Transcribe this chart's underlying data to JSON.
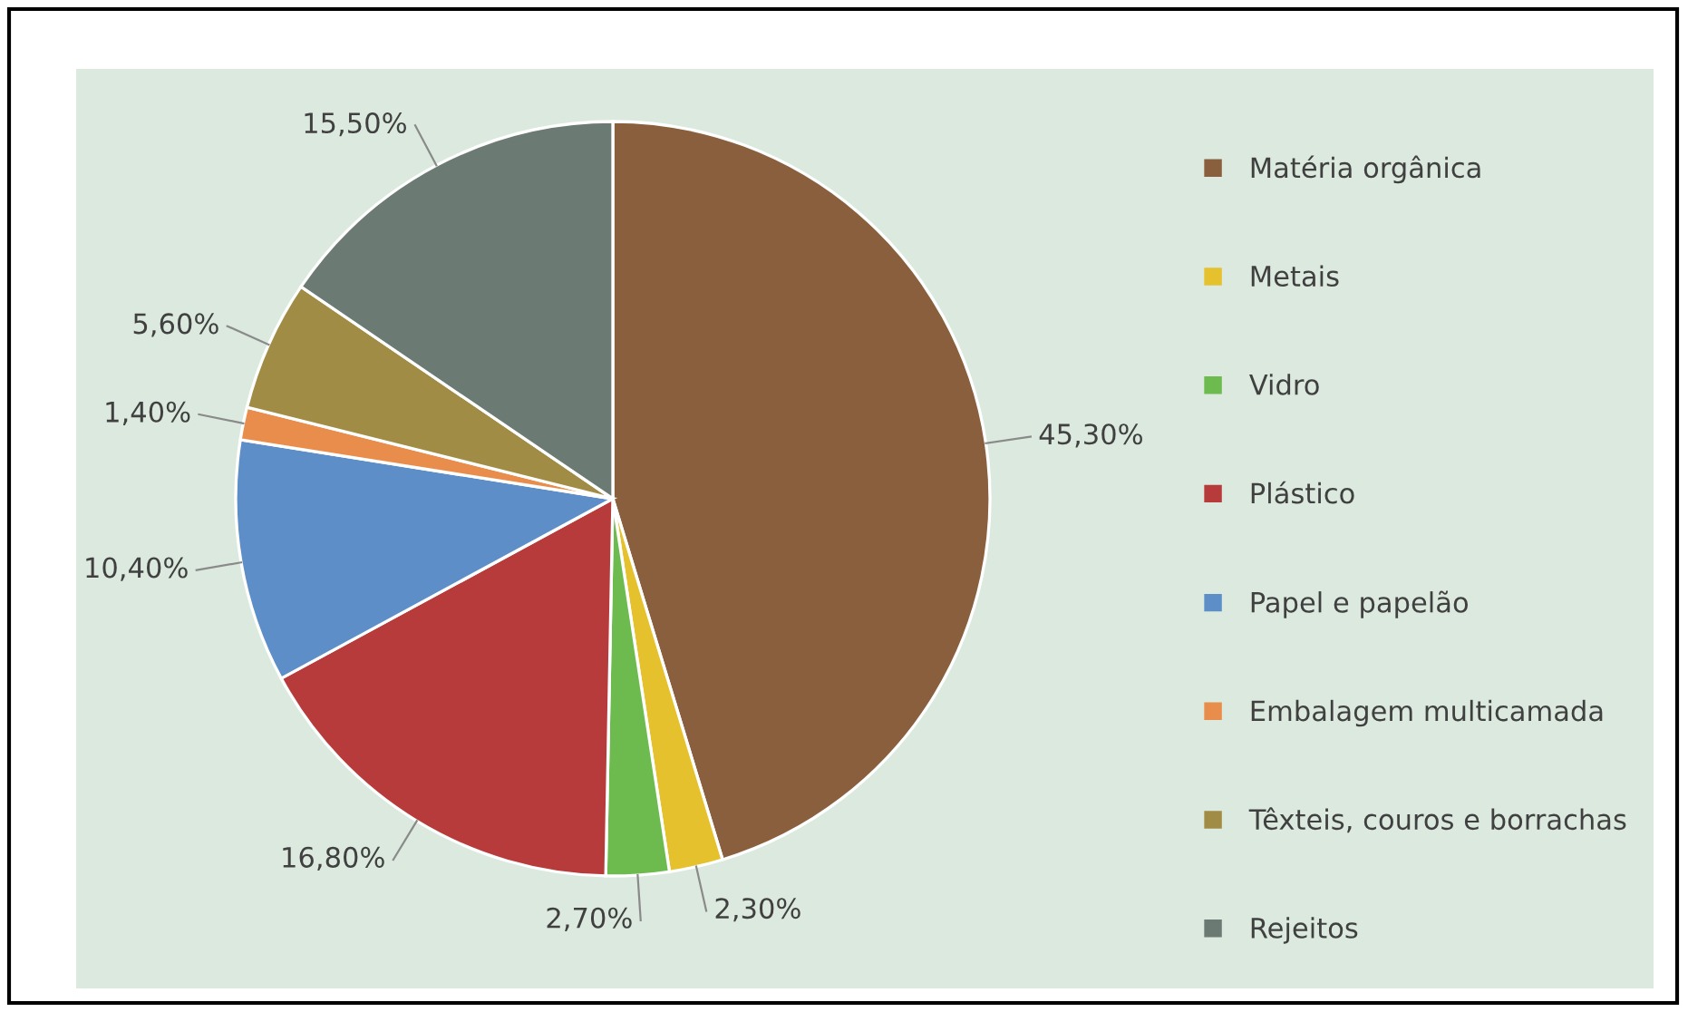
{
  "chart_data": {
    "type": "pie",
    "categories": [
      "Matéria orgânica",
      "Metais",
      "Vidro",
      "Plástico",
      "Papel e papelão",
      "Embalagem multicamada",
      "Têxteis, couros e borrachas",
      "Rejeitos"
    ],
    "values": [
      45.3,
      2.3,
      2.7,
      16.8,
      10.4,
      1.4,
      5.6,
      15.5
    ],
    "value_labels": [
      "45,30%",
      "2,30%",
      "2,70%",
      "16,80%",
      "10,40%",
      "1,40%",
      "5,60%",
      "15,50%"
    ],
    "colors": [
      "#8a5f3e",
      "#e6c12e",
      "#6dbb4f",
      "#b83b3b",
      "#5d8ec8",
      "#e88d4c",
      "#a18c45",
      "#6b7a72"
    ],
    "legend": "right"
  }
}
